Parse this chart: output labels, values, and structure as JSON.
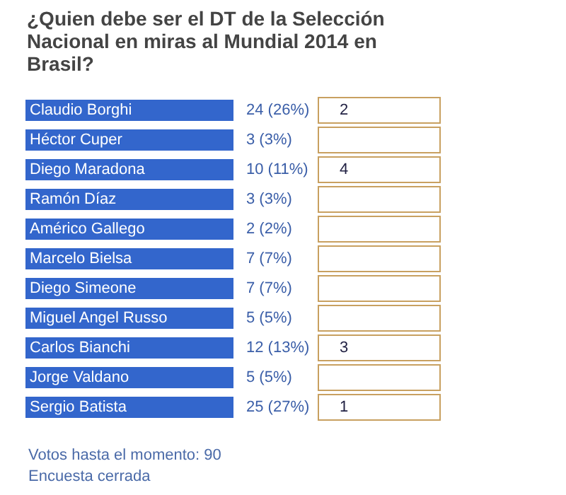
{
  "chart_data": {
    "type": "other",
    "title": "¿Quien debe ser el DT de la Selección Nacional en miras al Mundial 2014 en Brasil?",
    "categories": [
      "Claudio Borghi",
      "Héctor Cuper",
      "Diego Maradona",
      "Ramón Díaz",
      "Américo Gallego",
      "Marcelo Bielsa",
      "Diego Simeone",
      "Miguel Angel Russo",
      "Carlos Bianchi",
      "Jorge Valdano",
      "Sergio Batista"
    ],
    "values": [
      24,
      3,
      10,
      3,
      2,
      7,
      7,
      5,
      12,
      5,
      25
    ],
    "value_labels": [
      "24 (26%)",
      "3 (3%)",
      "10 (11%)",
      "3 (3%)",
      "2 (2%)",
      "7 (7%)",
      "7 (7%)",
      "5 (5%)",
      "12 (13%)",
      "5 (5%)",
      "25 (27%)"
    ],
    "color": "#3366cc",
    "annotations": [
      {
        "text": "2",
        "y": "Claudio Borghi"
      },
      {
        "text": "4",
        "y": "Diego Maradona"
      },
      {
        "text": "3",
        "y": "Carlos Bianchi"
      },
      {
        "text": "1",
        "y": "Sergio Batista"
      },
      "Votos hasta el momento: 90",
      "Encuesta cerrada"
    ]
  }
}
